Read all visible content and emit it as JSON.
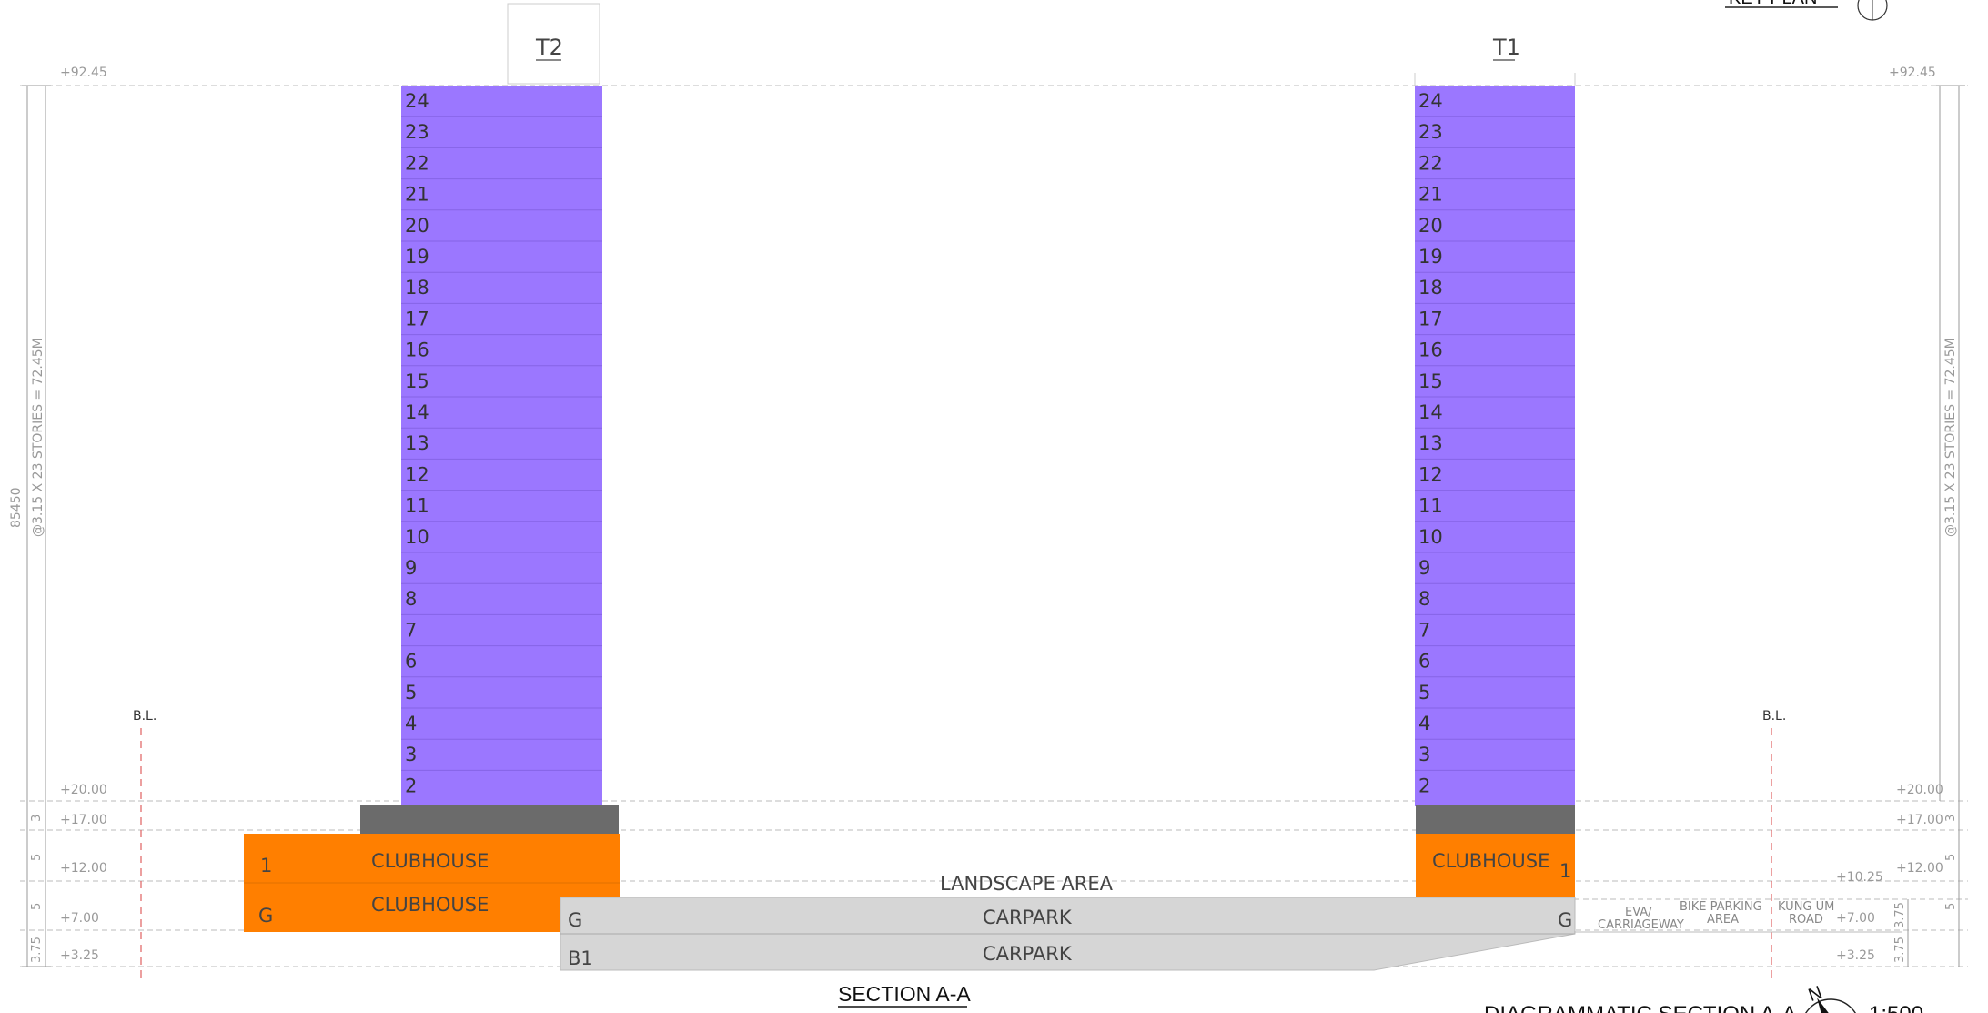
{
  "section": {
    "title": "SECTION A-A",
    "caption": "DIAGRAMMATIC SECTION A-A",
    "scale": "1:500",
    "north": "N",
    "key_plan_label": "KEY PLAN"
  },
  "towers": [
    {
      "name": "T2",
      "floors": [
        "24",
        "23",
        "22",
        "21",
        "20",
        "19",
        "18",
        "17",
        "16",
        "15",
        "14",
        "13",
        "12",
        "11",
        "10",
        "9",
        "8",
        "7",
        "6",
        "5",
        "4",
        "3",
        "2"
      ]
    },
    {
      "name": "T1",
      "floors": [
        "24",
        "23",
        "22",
        "21",
        "20",
        "19",
        "18",
        "17",
        "16",
        "15",
        "14",
        "13",
        "12",
        "11",
        "10",
        "9",
        "8",
        "7",
        "6",
        "5",
        "4",
        "3",
        "2"
      ]
    }
  ],
  "podium": {
    "t2_level_1": "1",
    "t2_level_g": "G",
    "t2_clubhouse_upper": "CLUBHOUSE",
    "t2_clubhouse_lower": "CLUBHOUSE",
    "t1_clubhouse": "CLUBHOUSE",
    "t1_level_1": "1",
    "landscape": "LANDSCAPE AREA",
    "carpark_g": "CARPARK",
    "carpark_b1": "CARPARK",
    "level_g_left": "G",
    "level_g_right": "G",
    "level_b1": "B1"
  },
  "levels": {
    "top": "+92.45",
    "l20": "+20.00",
    "l17": "+17.00",
    "l12": "+12.00",
    "l1025": "+10.25",
    "l7": "+7.00",
    "l325": "+3.25"
  },
  "dims": {
    "overall": "85450",
    "stories": "@3.15 X 23 STORIES = 72.45M",
    "d3": "3",
    "d5": "5",
    "d375": "3.75"
  },
  "labels": {
    "bl": "B.L.",
    "eva_1": "EVA/",
    "eva_2": "CARRIAGEWAY",
    "bike_1": "BIKE PARKING",
    "bike_2": "AREA",
    "road_1": "KUNG UM",
    "road_2": "ROAD"
  },
  "colors": {
    "tower": "#9b77ff",
    "podium_orange": "#ff7f00",
    "transfer_grey": "#6b6b6b",
    "carpark_grey": "#d6d6d6",
    "boundary_red": "#e06060"
  }
}
